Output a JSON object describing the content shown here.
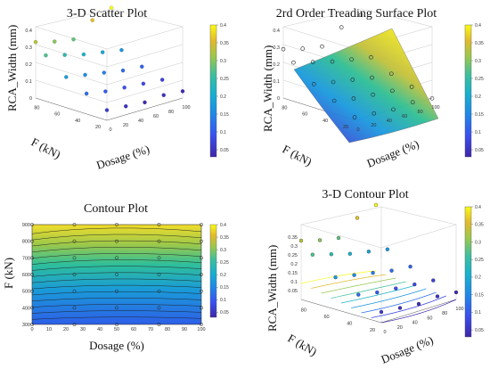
{
  "chart_data": [
    {
      "type": "scatter",
      "title": "3-D Scatter Plot",
      "xlabel": "Dosage (%)",
      "ylabel": "F (kN)",
      "zlabel": "RCA_Width (mm)",
      "x_ticks": [
        "0",
        "20",
        "40",
        "60",
        "80",
        "100"
      ],
      "y_ticks": [
        "20",
        "40",
        "60",
        "80"
      ],
      "z_ticks": [
        "0",
        "0.1",
        "0.2",
        "0.3",
        "0.4"
      ],
      "colorbar_ticks": [
        "0.05",
        "0.1",
        "0.15",
        "0.2",
        "0.25",
        "0.3",
        "0.35",
        "0.4"
      ],
      "colormap": [
        "#3e26a8",
        "#2f64f7",
        "#1e9ce0",
        "#2ab7a8",
        "#7dc75b",
        "#dbb92d",
        "#f9fb15"
      ],
      "points": [
        {
          "x": 0,
          "y": 20,
          "z": 0.06
        },
        {
          "x": 25,
          "y": 20,
          "z": 0.05
        },
        {
          "x": 50,
          "y": 20,
          "z": 0.04
        },
        {
          "x": 75,
          "y": 20,
          "z": 0.05
        },
        {
          "x": 100,
          "y": 20,
          "z": 0.04
        },
        {
          "x": 0,
          "y": 40,
          "z": 0.12
        },
        {
          "x": 25,
          "y": 40,
          "z": 0.1
        },
        {
          "x": 50,
          "y": 40,
          "z": 0.09
        },
        {
          "x": 75,
          "y": 40,
          "z": 0.08
        },
        {
          "x": 100,
          "y": 40,
          "z": 0.07
        },
        {
          "x": 0,
          "y": 60,
          "z": 0.18
        },
        {
          "x": 25,
          "y": 60,
          "z": 0.16
        },
        {
          "x": 50,
          "y": 60,
          "z": 0.14
        },
        {
          "x": 75,
          "y": 60,
          "z": 0.12
        },
        {
          "x": 100,
          "y": 60,
          "z": 0.11
        },
        {
          "x": 0,
          "y": 80,
          "z": 0.27
        },
        {
          "x": 25,
          "y": 80,
          "z": 0.24
        },
        {
          "x": 50,
          "y": 80,
          "z": 0.21
        },
        {
          "x": 75,
          "y": 80,
          "z": 0.19
        },
        {
          "x": 100,
          "y": 80,
          "z": 0.17
        },
        {
          "x": 0,
          "y": 90,
          "z": 0.33
        },
        {
          "x": 25,
          "y": 90,
          "z": 0.3
        },
        {
          "x": 50,
          "y": 90,
          "z": 0.28
        },
        {
          "x": 75,
          "y": 90,
          "z": 0.36
        },
        {
          "x": 100,
          "y": 90,
          "z": 0.4
        }
      ]
    },
    {
      "type": "surface",
      "title": "2rd Order Treading Surface Plot",
      "xlabel": "Dosage (%)",
      "ylabel": "F (kN)",
      "zlabel": "RCA_Width (mm)",
      "x_ticks": [
        "0",
        "20",
        "40",
        "60",
        "80",
        "100"
      ],
      "y_ticks": [
        "20",
        "40",
        "60",
        "80"
      ],
      "z_ticks": [
        "0",
        "0.1",
        "0.2",
        "0.3",
        "0.4"
      ],
      "colorbar_ticks": [
        "0.05",
        "0.1",
        "0.15",
        "0.2",
        "0.25",
        "0.3",
        "0.35",
        "0.4"
      ],
      "points": [
        {
          "x": 0,
          "y": 20,
          "z": 0.06
        },
        {
          "x": 25,
          "y": 20,
          "z": 0.05
        },
        {
          "x": 50,
          "y": 20,
          "z": 0.04
        },
        {
          "x": 75,
          "y": 20,
          "z": 0.05
        },
        {
          "x": 100,
          "y": 20,
          "z": 0.04
        },
        {
          "x": 0,
          "y": 40,
          "z": 0.12
        },
        {
          "x": 25,
          "y": 40,
          "z": 0.1
        },
        {
          "x": 50,
          "y": 40,
          "z": 0.09
        },
        {
          "x": 75,
          "y": 40,
          "z": 0.08
        },
        {
          "x": 100,
          "y": 40,
          "z": 0.07
        },
        {
          "x": 0,
          "y": 60,
          "z": 0.18
        },
        {
          "x": 25,
          "y": 60,
          "z": 0.16
        },
        {
          "x": 50,
          "y": 60,
          "z": 0.14
        },
        {
          "x": 75,
          "y": 60,
          "z": 0.12
        },
        {
          "x": 100,
          "y": 60,
          "z": 0.11
        },
        {
          "x": 0,
          "y": 80,
          "z": 0.27
        },
        {
          "x": 25,
          "y": 80,
          "z": 0.24
        },
        {
          "x": 50,
          "y": 80,
          "z": 0.21
        },
        {
          "x": 75,
          "y": 80,
          "z": 0.19
        },
        {
          "x": 100,
          "y": 80,
          "z": 0.17
        },
        {
          "x": 0,
          "y": 90,
          "z": 0.33
        },
        {
          "x": 25,
          "y": 90,
          "z": 0.3
        },
        {
          "x": 50,
          "y": 90,
          "z": 0.28
        },
        {
          "x": 75,
          "y": 90,
          "z": 0.36
        },
        {
          "x": 100,
          "y": 90,
          "z": 0.4
        }
      ]
    },
    {
      "type": "heatmap",
      "title": "Contour Plot",
      "xlabel": "Dosage (%)",
      "ylabel": "F (kN)",
      "x_ticks": [
        "0",
        "10",
        "20",
        "30",
        "40",
        "50",
        "60",
        "70",
        "80",
        "90",
        "100"
      ],
      "y_ticks": [
        "300",
        "400",
        "500",
        "600",
        "700",
        "800",
        "900"
      ],
      "xlim": [
        0,
        100
      ],
      "ylim": [
        300,
        900
      ],
      "colorbar_ticks": [
        "0.05",
        "0.1",
        "0.15",
        "0.2",
        "0.25",
        "0.3",
        "0.35",
        "0.4"
      ],
      "points": [
        {
          "x": 0,
          "y": 300
        },
        {
          "x": 25,
          "y": 300
        },
        {
          "x": 50,
          "y": 300
        },
        {
          "x": 75,
          "y": 300
        },
        {
          "x": 100,
          "y": 300
        },
        {
          "x": 0,
          "y": 400
        },
        {
          "x": 25,
          "y": 400
        },
        {
          "x": 50,
          "y": 400
        },
        {
          "x": 75,
          "y": 400
        },
        {
          "x": 100,
          "y": 400
        },
        {
          "x": 0,
          "y": 500
        },
        {
          "x": 25,
          "y": 500
        },
        {
          "x": 50,
          "y": 500
        },
        {
          "x": 75,
          "y": 500
        },
        {
          "x": 100,
          "y": 500
        },
        {
          "x": 0,
          "y": 600
        },
        {
          "x": 25,
          "y": 600
        },
        {
          "x": 50,
          "y": 600
        },
        {
          "x": 75,
          "y": 600
        },
        {
          "x": 100,
          "y": 600
        },
        {
          "x": 0,
          "y": 700
        },
        {
          "x": 25,
          "y": 700
        },
        {
          "x": 50,
          "y": 700
        },
        {
          "x": 75,
          "y": 700
        },
        {
          "x": 100,
          "y": 700
        },
        {
          "x": 0,
          "y": 800
        },
        {
          "x": 25,
          "y": 800
        },
        {
          "x": 50,
          "y": 800
        },
        {
          "x": 75,
          "y": 800
        },
        {
          "x": 100,
          "y": 800
        },
        {
          "x": 0,
          "y": 900
        },
        {
          "x": 25,
          "y": 900
        },
        {
          "x": 50,
          "y": 900
        },
        {
          "x": 75,
          "y": 900
        },
        {
          "x": 100,
          "y": 900
        }
      ]
    },
    {
      "type": "scatter",
      "title": "3-D Contour Plot",
      "xlabel": "Dosage (%)",
      "ylabel": "F (kN)",
      "zlabel": "RCA_Width (mm)",
      "x_ticks": [
        "0",
        "20",
        "40",
        "60",
        "80",
        "100"
      ],
      "y_ticks": [
        "20",
        "40",
        "60",
        "80"
      ],
      "z_ticks": [
        "0.05",
        "0.1",
        "0.15",
        "0.2",
        "0.25",
        "0.3",
        "0.35"
      ],
      "colorbar_ticks": [
        "0.05",
        "0.1",
        "0.15",
        "0.2",
        "0.25",
        "0.3",
        "0.35",
        "0.4"
      ],
      "points": [
        {
          "x": 0,
          "y": 20,
          "z": 0.06
        },
        {
          "x": 25,
          "y": 20,
          "z": 0.05
        },
        {
          "x": 50,
          "y": 20,
          "z": 0.04
        },
        {
          "x": 75,
          "y": 20,
          "z": 0.05
        },
        {
          "x": 100,
          "y": 20,
          "z": 0.04
        },
        {
          "x": 0,
          "y": 40,
          "z": 0.12
        },
        {
          "x": 25,
          "y": 40,
          "z": 0.1
        },
        {
          "x": 50,
          "y": 40,
          "z": 0.09
        },
        {
          "x": 75,
          "y": 40,
          "z": 0.08
        },
        {
          "x": 100,
          "y": 40,
          "z": 0.07
        },
        {
          "x": 0,
          "y": 60,
          "z": 0.18
        },
        {
          "x": 25,
          "y": 60,
          "z": 0.16
        },
        {
          "x": 50,
          "y": 60,
          "z": 0.14
        },
        {
          "x": 75,
          "y": 60,
          "z": 0.12
        },
        {
          "x": 100,
          "y": 60,
          "z": 0.11
        },
        {
          "x": 0,
          "y": 80,
          "z": 0.27
        },
        {
          "x": 25,
          "y": 80,
          "z": 0.24
        },
        {
          "x": 50,
          "y": 80,
          "z": 0.21
        },
        {
          "x": 75,
          "y": 80,
          "z": 0.19
        },
        {
          "x": 100,
          "y": 80,
          "z": 0.17
        },
        {
          "x": 0,
          "y": 90,
          "z": 0.33
        },
        {
          "x": 25,
          "y": 90,
          "z": 0.3
        },
        {
          "x": 50,
          "y": 90,
          "z": 0.28
        },
        {
          "x": 75,
          "y": 90,
          "z": 0.36
        },
        {
          "x": 100,
          "y": 90,
          "z": 0.4
        }
      ]
    }
  ]
}
